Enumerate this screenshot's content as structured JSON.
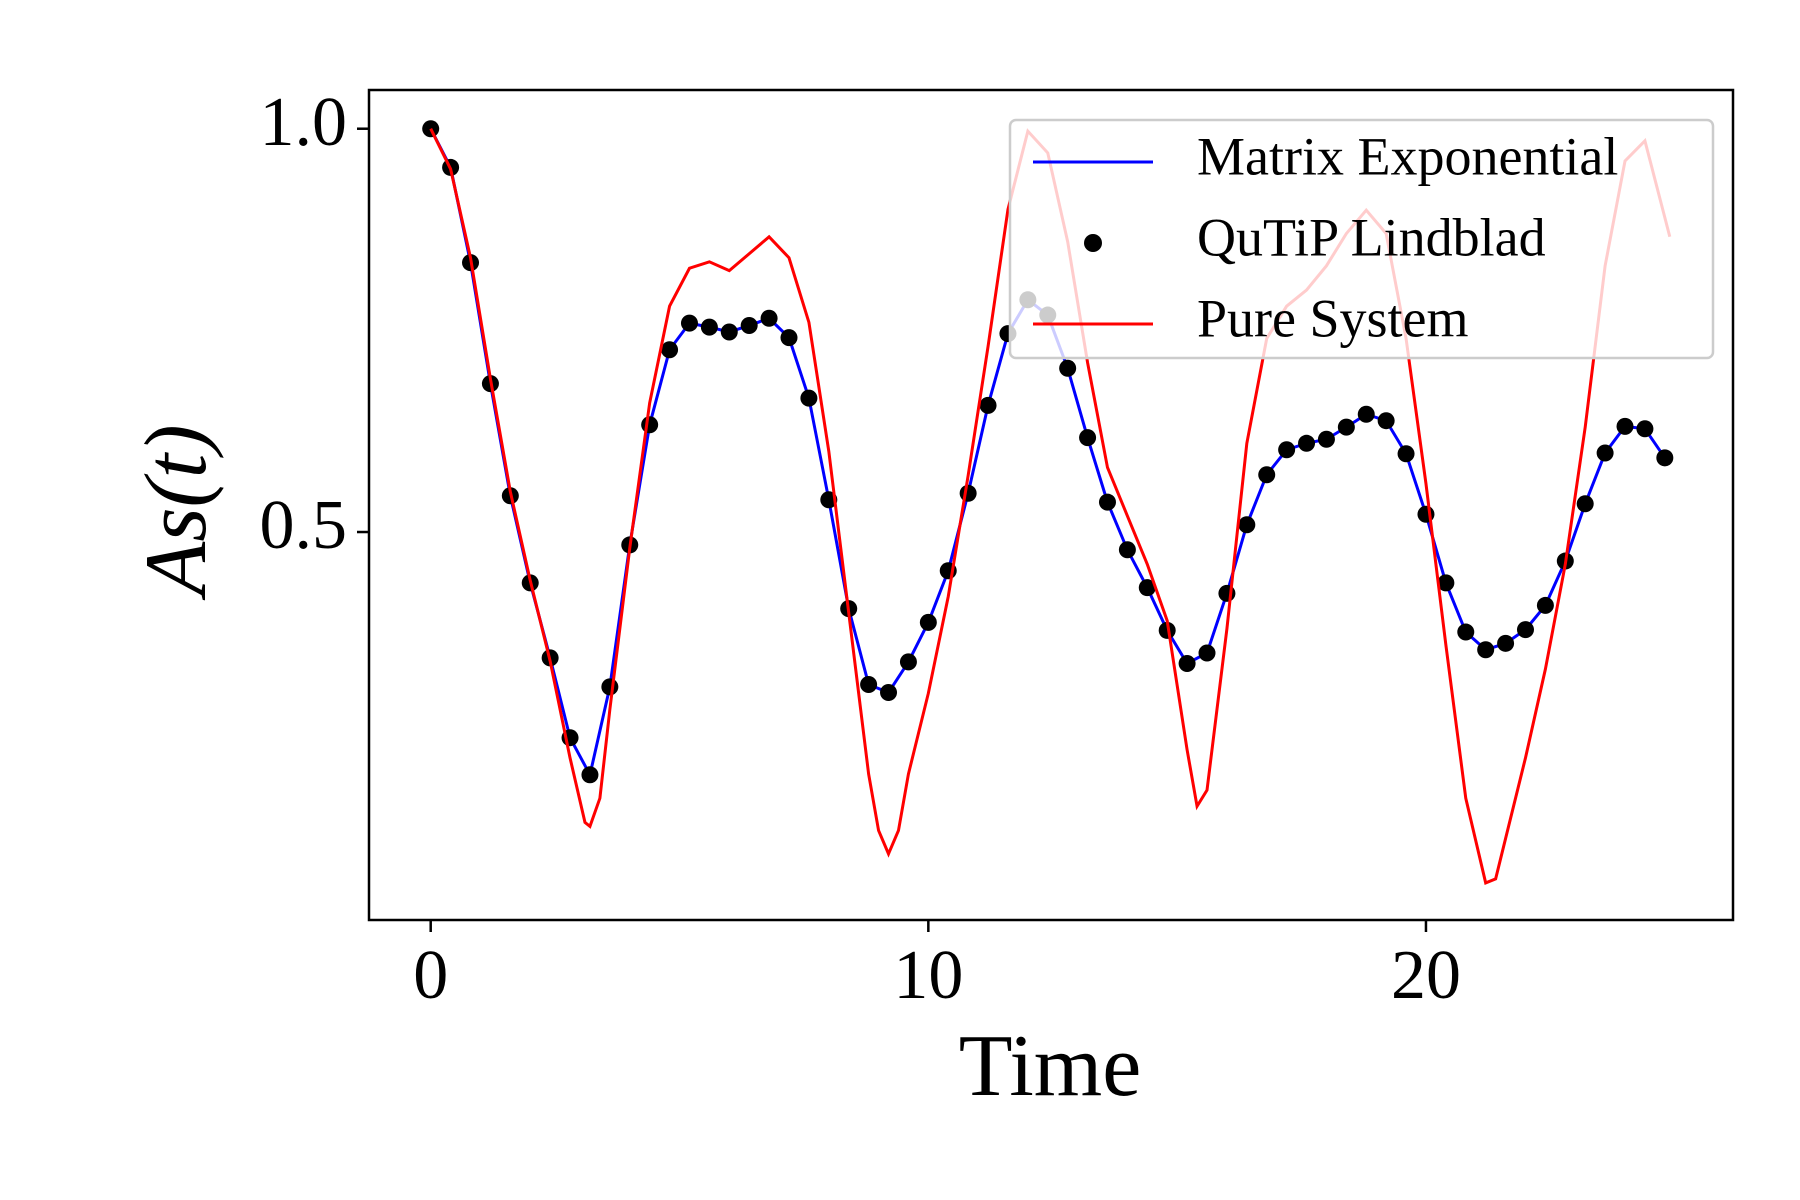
{
  "chart_data": {
    "type": "line",
    "xlabel": "Time",
    "ylabel": "As(t)",
    "xlim": [
      -1.24,
      26.17
    ],
    "ylim": [
      0.019,
      1.048
    ],
    "xticks": [
      0,
      10,
      20
    ],
    "yticks": [
      0.5,
      {
        "value": 1,
        "label": "1.0"
      }
    ],
    "legend": "upper right",
    "series": [
      {
        "name": "Matrix Exponential",
        "color": "#0000ff",
        "style": "line",
        "x": [
          0,
          0.4,
          0.8,
          1.2,
          1.6,
          2.0,
          2.4,
          2.8,
          3.2,
          3.6,
          4.0,
          4.4,
          4.8,
          5.2,
          5.6,
          6.0,
          6.4,
          6.8,
          7.2,
          7.6,
          8.0,
          8.4,
          8.8,
          9.2,
          9.6,
          10.0,
          10.4,
          10.8,
          11.2,
          11.6,
          12.0,
          12.4,
          12.8,
          13.2,
          13.6,
          14.0,
          14.4,
          14.8,
          15.2,
          15.6,
          16.0,
          16.4,
          16.8,
          17.2,
          17.6,
          18.0,
          18.4,
          18.8,
          19.2,
          19.6,
          20.0,
          20.4,
          20.8,
          21.2,
          21.6,
          22.0,
          22.4,
          22.8,
          23.2,
          23.6,
          24.0,
          24.4,
          24.8
        ],
        "values": [
          1.0,
          0.952,
          0.834,
          0.684,
          0.545,
          0.437,
          0.344,
          0.245,
          0.199,
          0.308,
          0.484,
          0.633,
          0.726,
          0.759,
          0.754,
          0.748,
          0.756,
          0.765,
          0.741,
          0.666,
          0.54,
          0.405,
          0.311,
          0.301,
          0.339,
          0.388,
          0.452,
          0.548,
          0.657,
          0.746,
          0.788,
          0.769,
          0.703,
          0.617,
          0.537,
          0.478,
          0.431,
          0.378,
          0.337,
          0.35,
          0.424,
          0.509,
          0.571,
          0.602,
          0.61,
          0.615,
          0.63,
          0.646,
          0.638,
          0.597,
          0.522,
          0.437,
          0.376,
          0.354,
          0.362,
          0.379,
          0.409,
          0.464,
          0.535,
          0.598,
          0.631,
          0.628,
          0.592
        ]
      },
      {
        "name": "QuTiP Lindblad",
        "color": "#000000",
        "style": "marker",
        "x": [
          0,
          0.4,
          0.8,
          1.2,
          1.6,
          2.0,
          2.4,
          2.8,
          3.2,
          3.6,
          4.0,
          4.4,
          4.8,
          5.2,
          5.6,
          6.0,
          6.4,
          6.8,
          7.2,
          7.6,
          8.0,
          8.4,
          8.8,
          9.2,
          9.6,
          10.0,
          10.4,
          10.8,
          11.2,
          11.6,
          12.0,
          12.4,
          12.8,
          13.2,
          13.6,
          14.0,
          14.4,
          14.8,
          15.2,
          15.6,
          16.0,
          16.4,
          16.8,
          17.2,
          17.6,
          18.0,
          18.4,
          18.8,
          19.2,
          19.6,
          20.0,
          20.4,
          20.8,
          21.2,
          21.6,
          22.0,
          22.4,
          22.8,
          23.2,
          23.6,
          24.0,
          24.4,
          24.8
        ],
        "values": [
          1.0,
          0.952,
          0.834,
          0.684,
          0.545,
          0.437,
          0.344,
          0.245,
          0.199,
          0.308,
          0.484,
          0.633,
          0.726,
          0.759,
          0.754,
          0.748,
          0.756,
          0.765,
          0.741,
          0.666,
          0.54,
          0.405,
          0.311,
          0.301,
          0.339,
          0.388,
          0.452,
          0.548,
          0.657,
          0.746,
          0.788,
          0.769,
          0.703,
          0.617,
          0.537,
          0.478,
          0.431,
          0.378,
          0.337,
          0.35,
          0.424,
          0.509,
          0.571,
          0.602,
          0.61,
          0.615,
          0.63,
          0.646,
          0.638,
          0.597,
          0.522,
          0.437,
          0.376,
          0.354,
          0.362,
          0.379,
          0.409,
          0.464,
          0.535,
          0.598,
          0.631,
          0.628,
          0.592
        ]
      },
      {
        "name": "Pure System",
        "color": "#ff0000",
        "style": "line",
        "x": [
          0,
          0.4,
          0.8,
          1.2,
          1.6,
          2.0,
          2.4,
          2.8,
          3.1,
          3.2,
          3.4,
          3.6,
          4.0,
          4.4,
          4.8,
          5.2,
          5.6,
          6.0,
          6.4,
          6.8,
          7.2,
          7.6,
          8.0,
          8.4,
          8.8,
          9.0,
          9.2,
          9.4,
          9.6,
          10.0,
          10.4,
          10.8,
          11.2,
          11.6,
          12.0,
          12.4,
          12.8,
          13.2,
          13.6,
          14.0,
          14.4,
          14.8,
          15.2,
          15.4,
          15.6,
          16.0,
          16.4,
          16.8,
          17.2,
          17.6,
          18.0,
          18.4,
          18.8,
          19.2,
          19.6,
          20.0,
          20.4,
          20.8,
          21.2,
          21.4,
          21.6,
          22.0,
          22.4,
          22.8,
          23.2,
          23.6,
          24.0,
          24.4,
          24.8,
          24.9
        ],
        "values": [
          1.0,
          0.95,
          0.84,
          0.69,
          0.55,
          0.44,
          0.34,
          0.22,
          0.14,
          0.135,
          0.17,
          0.28,
          0.48,
          0.66,
          0.78,
          0.827,
          0.835,
          0.824,
          0.845,
          0.866,
          0.84,
          0.76,
          0.6,
          0.4,
          0.2,
          0.13,
          0.101,
          0.13,
          0.2,
          0.3,
          0.42,
          0.57,
          0.73,
          0.9,
          0.997,
          0.97,
          0.86,
          0.71,
          0.58,
          0.52,
          0.46,
          0.39,
          0.23,
          0.16,
          0.18,
          0.38,
          0.61,
          0.74,
          0.78,
          0.8,
          0.83,
          0.87,
          0.899,
          0.87,
          0.74,
          0.56,
          0.36,
          0.17,
          0.065,
          0.07,
          0.12,
          0.22,
          0.33,
          0.46,
          0.63,
          0.83,
          0.96,
          0.985,
          0.89,
          0.866
        ]
      }
    ]
  }
}
